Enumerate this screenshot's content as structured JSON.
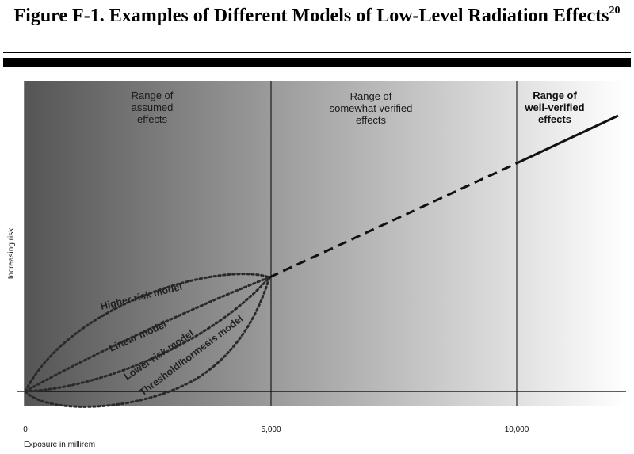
{
  "figure": {
    "title": "Figure F-1. Examples of Different Models of Low-Level Radiation Effects",
    "footnote": "20"
  },
  "chart_data": {
    "type": "line",
    "title": "Figure F-1. Examples of Different Models of Low-Level Radiation Effects",
    "xlabel": "Exposure in millirem",
    "ylabel": "Increasing risk",
    "xlim": [
      0,
      12000
    ],
    "x_ticks": [
      {
        "value": 0,
        "label": "0"
      },
      {
        "value": 5000,
        "label": "5,000"
      },
      {
        "value": 10000,
        "label": "10,000"
      }
    ],
    "regions": [
      {
        "name": "assumed",
        "range": [
          0,
          5000
        ],
        "lines": [
          "Range of",
          "assumed",
          "effects"
        ]
      },
      {
        "name": "somewhat-verified",
        "range": [
          5000,
          10000
        ],
        "lines": [
          "Range of",
          "somewhat verified",
          "effects"
        ]
      },
      {
        "name": "well-verified",
        "range": [
          10000,
          12000
        ],
        "lines": [
          "Range of",
          "well-verified",
          "effects"
        ]
      }
    ],
    "background": {
      "dark_color": "#555555",
      "light_color": "#ffffff"
    },
    "series": [
      {
        "name": "Higher risk model",
        "style": "dotted"
      },
      {
        "name": "Linear model",
        "style": "dotted"
      },
      {
        "name": "Lower risk model",
        "style": "dotted"
      },
      {
        "name": "Threshold/hormesis model",
        "style": "dotted"
      }
    ],
    "extrapolation": {
      "style": "dashed",
      "from_x": 5000,
      "to_x": 10000
    },
    "well_verified_line": {
      "style": "solid",
      "from_x": 10000,
      "to_x": 12000
    },
    "grid": false
  }
}
